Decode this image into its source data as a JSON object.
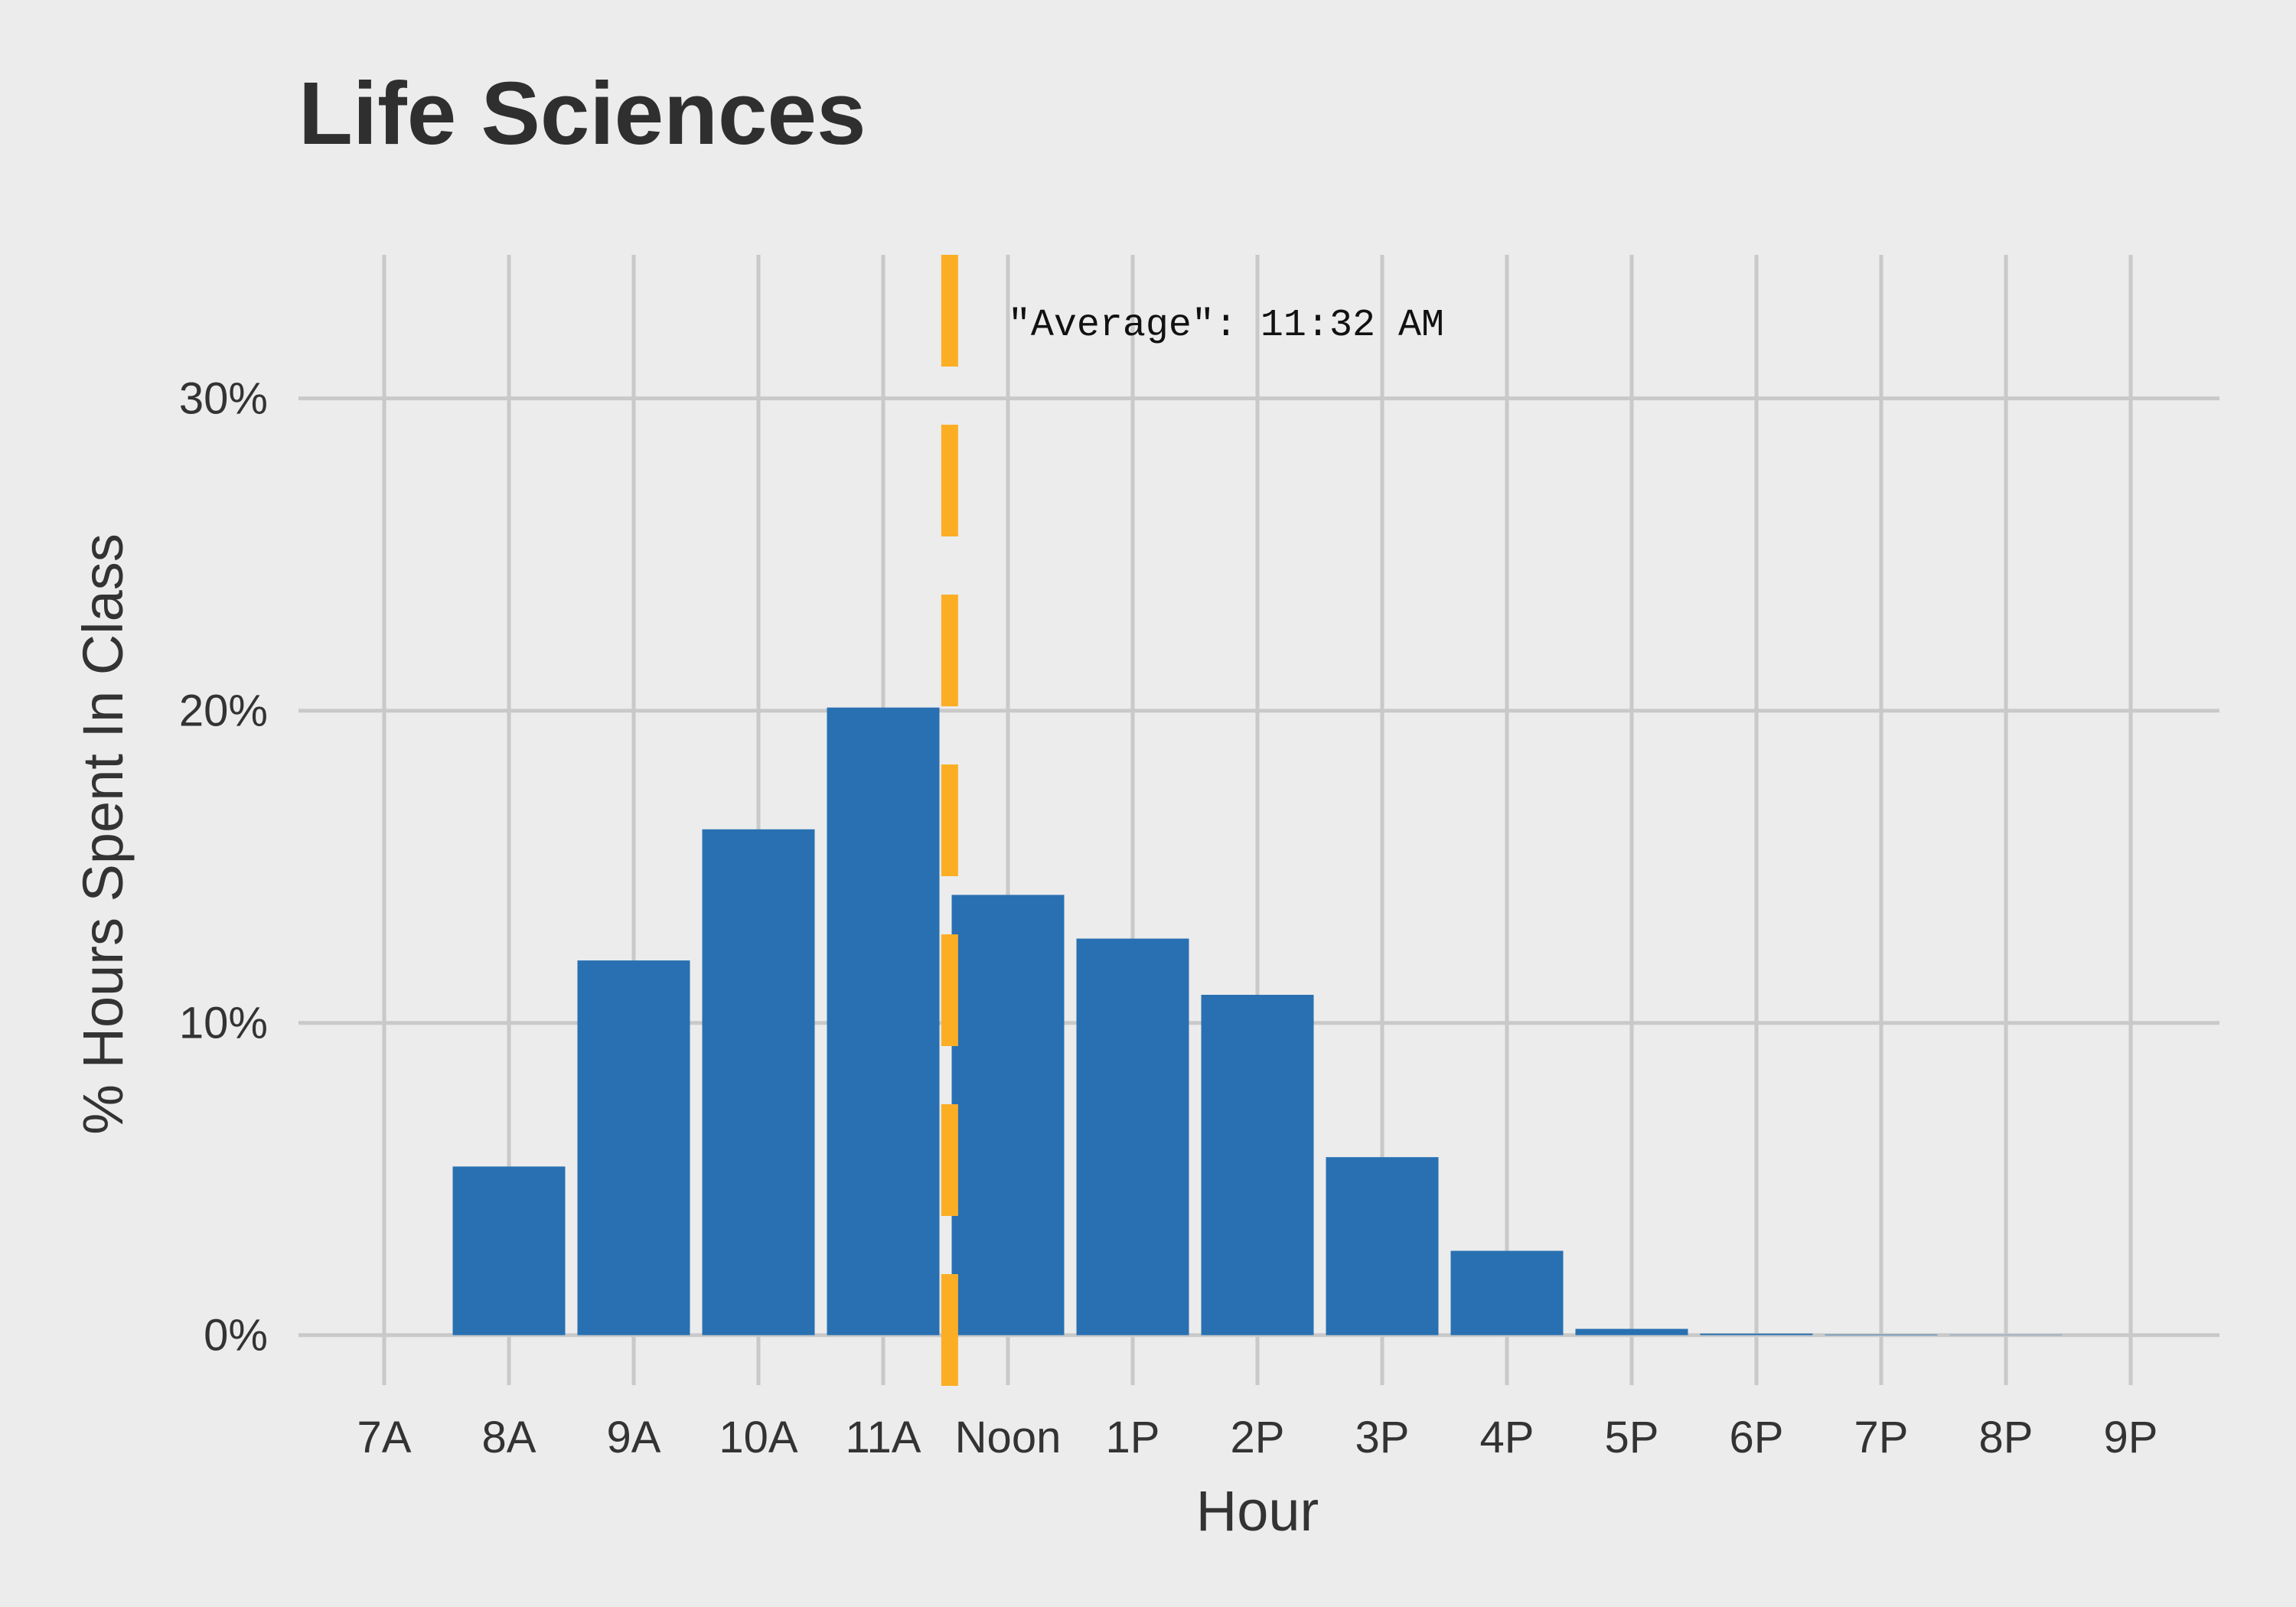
{
  "chart_data": {
    "type": "bar",
    "title": "Life Sciences",
    "xlabel": "Hour",
    "ylabel": "% Hours Spent In Class",
    "categories": [
      "7A",
      "8A",
      "9A",
      "10A",
      "11A",
      "Noon",
      "1P",
      "2P",
      "3P",
      "4P",
      "5P",
      "6P",
      "7P",
      "8P",
      "9P"
    ],
    "values": [
      0,
      5.4,
      12.0,
      16.2,
      20.1,
      14.1,
      12.7,
      10.9,
      5.7,
      2.7,
      0.2,
      0.05,
      0.02,
      0.01,
      0
    ],
    "y_ticks": [
      0,
      10,
      20,
      30
    ],
    "y_tick_labels": [
      "0%",
      "10%",
      "20%",
      "30%"
    ],
    "ylim": [
      -1.6,
      34.6
    ],
    "grid": true,
    "average_line": {
      "x": 11.533,
      "label": "\"Average\": 11:32 AM",
      "style": "dashed"
    },
    "colors": {
      "background": "#ececec",
      "bar": "#2870b1",
      "grid": "#c9c9c9",
      "average_line": "#fbae24"
    }
  }
}
